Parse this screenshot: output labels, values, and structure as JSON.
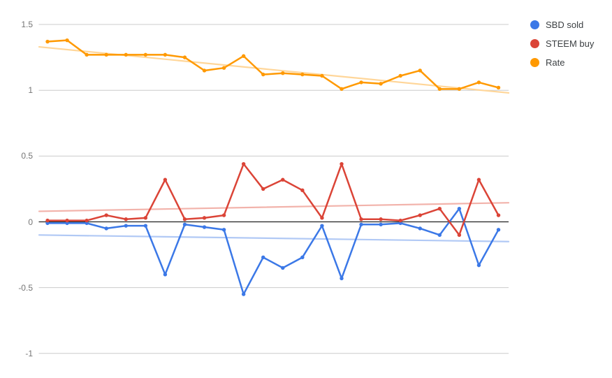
{
  "legend": {
    "position": "right",
    "items": [
      {
        "label": "SBD sold",
        "color": "#3B78E7",
        "marker": "circle-icon"
      },
      {
        "label": "STEEM buy",
        "color": "#DB4437",
        "marker": "circle-icon"
      },
      {
        "label": "Rate",
        "color": "#FF9900",
        "marker": "circle-icon"
      }
    ]
  },
  "chart_data": {
    "type": "line",
    "title": "",
    "xlabel": "",
    "ylabel": "",
    "x": [
      1,
      2,
      3,
      4,
      5,
      6,
      7,
      8,
      9,
      10,
      11,
      12,
      13,
      14,
      15,
      16,
      17,
      18,
      19,
      20,
      21,
      22,
      23,
      24
    ],
    "x_axis_labels_visible": false,
    "grid": true,
    "legend_position": "right",
    "ylim": [
      -1.19,
      1.69
    ],
    "baseline": 0,
    "grid_color": "#cccccc",
    "baseline_color": "#212121",
    "y_ticks": [
      {
        "label": "1.5",
        "value": 1.5
      },
      {
        "label": "1",
        "value": 1
      },
      {
        "label": "0.5",
        "value": 0.5
      },
      {
        "label": "0",
        "value": 0
      },
      {
        "label": "-0.5",
        "value": -0.5
      },
      {
        "label": "-1",
        "value": -1
      }
    ],
    "series": [
      {
        "name": "SBD sold",
        "color": "#3B78E7",
        "trend_color": "#B1C9F5",
        "values": [
          -0.01,
          -0.01,
          -0.01,
          -0.05,
          -0.03,
          -0.03,
          -0.4,
          -0.02,
          -0.04,
          -0.06,
          -0.55,
          -0.27,
          -0.35,
          -0.27,
          -0.03,
          -0.43,
          -0.02,
          -0.02,
          -0.01,
          -0.05,
          -0.1,
          0.1,
          -0.33,
          -0.06
        ],
        "trendline": {
          "start": -0.1,
          "end": -0.15
        }
      },
      {
        "name": "STEEM buy",
        "color": "#DB4437",
        "trend_color": "#F2B3AB",
        "values": [
          0.01,
          0.01,
          0.01,
          0.05,
          0.02,
          0.03,
          0.32,
          0.02,
          0.03,
          0.05,
          0.44,
          0.25,
          0.32,
          0.24,
          0.03,
          0.44,
          0.02,
          0.02,
          0.01,
          0.05,
          0.1,
          -0.1,
          0.32,
          0.05
        ],
        "trendline": {
          "start": 0.08,
          "end": 0.145
        }
      },
      {
        "name": "Rate",
        "color": "#FF9900",
        "trend_color": "#FFD699",
        "values": [
          1.37,
          1.38,
          1.27,
          1.27,
          1.27,
          1.27,
          1.27,
          1.25,
          1.15,
          1.17,
          1.26,
          1.12,
          1.13,
          1.12,
          1.11,
          1.01,
          1.06,
          1.05,
          1.11,
          1.15,
          1.01,
          1.01,
          1.06,
          1.02
        ],
        "trendline": {
          "start": 1.33,
          "end": 0.98
        }
      }
    ]
  }
}
